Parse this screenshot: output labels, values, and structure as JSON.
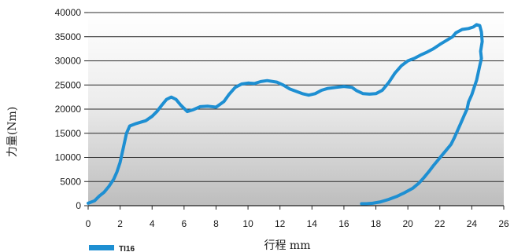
{
  "chart_data": {
    "type": "line",
    "xlabel": "行程 mm",
    "ylabel": "力量(Nm)",
    "xlim": [
      0,
      26
    ],
    "ylim": [
      0,
      40000
    ],
    "x_ticks": [
      "0",
      "2",
      "4",
      "6",
      "8",
      "10",
      "12",
      "14",
      "16",
      "18",
      "20",
      "22",
      "24",
      "26"
    ],
    "y_ticks": [
      "0",
      "5000",
      "10000",
      "15000",
      "20000",
      "25000",
      "30000",
      "35000",
      "40000"
    ],
    "grid": "horizontal",
    "background": "vertical gradient, light gray at top to darker gray at bottom",
    "legend_position": "bottom-left",
    "series": [
      {
        "name": "TI16",
        "color": "#1e8fd2",
        "points": [
          [
            0.0,
            500
          ],
          [
            0.4,
            1000
          ],
          [
            0.7,
            2000
          ],
          [
            1.0,
            2800
          ],
          [
            1.3,
            4000
          ],
          [
            1.6,
            5500
          ],
          [
            1.8,
            7000
          ],
          [
            2.0,
            9000
          ],
          [
            2.2,
            12000
          ],
          [
            2.4,
            15000
          ],
          [
            2.6,
            16500
          ],
          [
            3.0,
            17000
          ],
          [
            3.3,
            17300
          ],
          [
            3.6,
            17600
          ],
          [
            4.0,
            18500
          ],
          [
            4.3,
            19500
          ],
          [
            4.6,
            20800
          ],
          [
            4.9,
            22000
          ],
          [
            5.2,
            22500
          ],
          [
            5.5,
            22000
          ],
          [
            5.8,
            20800
          ],
          [
            6.2,
            19500
          ],
          [
            6.6,
            19900
          ],
          [
            7.0,
            20500
          ],
          [
            7.5,
            20600
          ],
          [
            8.0,
            20400
          ],
          [
            8.5,
            21600
          ],
          [
            8.8,
            23000
          ],
          [
            9.2,
            24500
          ],
          [
            9.6,
            25200
          ],
          [
            10.0,
            25400
          ],
          [
            10.4,
            25300
          ],
          [
            10.8,
            25700
          ],
          [
            11.2,
            25900
          ],
          [
            11.8,
            25600
          ],
          [
            12.2,
            25000
          ],
          [
            12.6,
            24200
          ],
          [
            13.0,
            23700
          ],
          [
            13.4,
            23200
          ],
          [
            13.8,
            22900
          ],
          [
            14.2,
            23200
          ],
          [
            14.6,
            23900
          ],
          [
            15.0,
            24300
          ],
          [
            15.5,
            24500
          ],
          [
            16.0,
            24700
          ],
          [
            16.5,
            24500
          ],
          [
            16.8,
            23800
          ],
          [
            17.2,
            23200
          ],
          [
            17.6,
            23100
          ],
          [
            18.0,
            23200
          ],
          [
            18.4,
            23900
          ],
          [
            18.8,
            25500
          ],
          [
            19.2,
            27500
          ],
          [
            19.6,
            29000
          ],
          [
            20.0,
            30000
          ],
          [
            20.4,
            30500
          ],
          [
            20.8,
            31200
          ],
          [
            21.2,
            31800
          ],
          [
            21.6,
            32500
          ],
          [
            22.0,
            33400
          ],
          [
            22.4,
            34200
          ],
          [
            22.8,
            35000
          ],
          [
            23.0,
            35800
          ],
          [
            23.4,
            36500
          ],
          [
            23.8,
            36700
          ],
          [
            24.1,
            37000
          ],
          [
            24.3,
            37500
          ],
          [
            24.5,
            37300
          ],
          [
            24.6,
            36000
          ],
          [
            24.65,
            34000
          ],
          [
            24.55,
            32000
          ],
          [
            24.6,
            30500
          ],
          [
            24.5,
            29000
          ],
          [
            24.4,
            27500
          ],
          [
            24.3,
            26000
          ],
          [
            24.15,
            24500
          ],
          [
            24.0,
            23000
          ],
          [
            23.8,
            21500
          ],
          [
            23.7,
            20000
          ],
          [
            23.5,
            18500
          ],
          [
            23.3,
            17000
          ],
          [
            23.1,
            15500
          ],
          [
            22.9,
            14000
          ],
          [
            22.7,
            12700
          ],
          [
            22.4,
            11500
          ],
          [
            22.2,
            10700
          ],
          [
            21.9,
            9500
          ],
          [
            21.6,
            8300
          ],
          [
            21.3,
            7000
          ],
          [
            21.0,
            5800
          ],
          [
            20.7,
            4700
          ],
          [
            20.3,
            3600
          ],
          [
            19.8,
            2700
          ],
          [
            19.3,
            1900
          ],
          [
            18.8,
            1300
          ],
          [
            18.3,
            800
          ],
          [
            17.8,
            500
          ],
          [
            17.4,
            400
          ],
          [
            17.1,
            400
          ]
        ]
      }
    ]
  }
}
